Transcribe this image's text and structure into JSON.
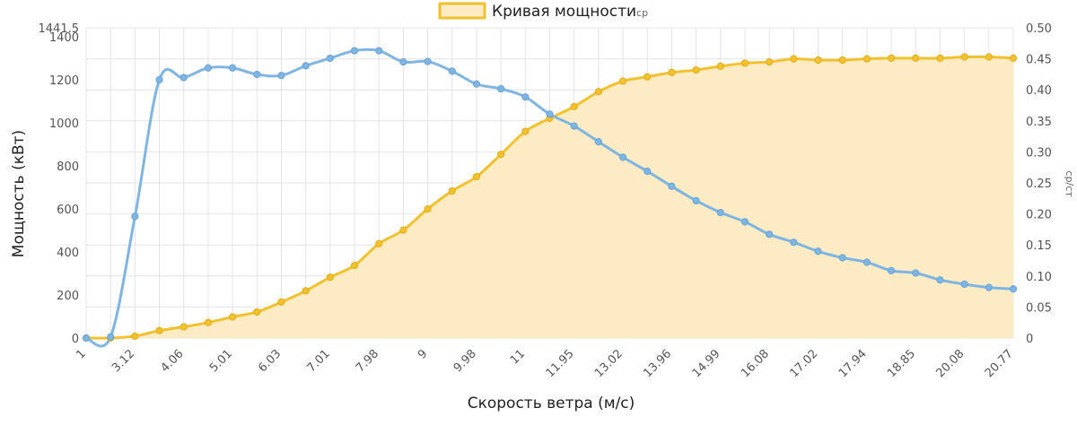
{
  "chart_data": {
    "type": "line",
    "legend": {
      "label": "Кривая мощности",
      "suffix": "ср",
      "placement": "top-center",
      "fill_color": "#fcebc3",
      "border_color": "#f2c12e"
    },
    "xlabel": "Скорость ветра (м/с)",
    "ylabel": "Мощность (кВт)",
    "y2label": "ср/ст",
    "x_tick_labels": [
      "1",
      "3.12",
      "4.06",
      "5.01",
      "6.03",
      "7.01",
      "7.98",
      "9",
      "9.98",
      "11",
      "11.95",
      "13.02",
      "13.96",
      "14.99",
      "16.08",
      "17.02",
      "17.94",
      "18.85",
      "20.08",
      "20.77"
    ],
    "x": [
      "1",
      "2",
      "3.12",
      "3.5",
      "4.06",
      "4.5",
      "5.01",
      "5.5",
      "6.03",
      "6.5",
      "7.01",
      "7.5",
      "7.98",
      "8.5",
      "9",
      "9.5",
      "9.98",
      "10.5",
      "11",
      "11.5",
      "11.95",
      "12.5",
      "13.02",
      "13.5",
      "13.96",
      "14.5",
      "14.99",
      "15.5",
      "16.08",
      "16.5",
      "17.02",
      "17.5",
      "17.94",
      "18.5",
      "18.85",
      "19.5",
      "20.08",
      "20.5",
      "20.77"
    ],
    "y_left": {
      "min": 0,
      "max": 1441.5,
      "ticks": [
        0,
        200,
        400,
        600,
        800,
        1000,
        1200,
        1400
      ],
      "top_label": "1441.5"
    },
    "y_right": {
      "min": 0,
      "max": 0.5,
      "ticks": [
        "0",
        "0.05",
        "0.10",
        "0.15",
        "0.20",
        "0.25",
        "0.30",
        "0.35",
        "0.40",
        "0.45",
        "0.50"
      ]
    },
    "grid": true,
    "series": [
      {
        "name": "Кривая мощности",
        "axis": "right",
        "type": "area",
        "color": "#f2c12e",
        "fill": "#fcebc3",
        "values": [
          0,
          0,
          0.003,
          0.012,
          0.018,
          0.025,
          0.034,
          0.042,
          0.058,
          0.076,
          0.098,
          0.117,
          0.152,
          0.174,
          0.208,
          0.237,
          0.26,
          0.296,
          0.333,
          0.354,
          0.373,
          0.397,
          0.414,
          0.421,
          0.428,
          0.432,
          0.438,
          0.443,
          0.445,
          0.45,
          0.448,
          0.448,
          0.45,
          0.451,
          0.451,
          0.451,
          0.453,
          0.453,
          0.451
        ]
      },
      {
        "name": "",
        "axis": "left",
        "type": "line",
        "color": "#7fb5e3",
        "values": [
          0,
          5,
          565,
          1200,
          1210,
          1255,
          1255,
          1225,
          1220,
          1265,
          1300,
          1335,
          1335,
          1283,
          1285,
          1240,
          1180,
          1158,
          1120,
          1040,
          985,
          912,
          840,
          775,
          705,
          638,
          583,
          540,
          482,
          445,
          403,
          373,
          352,
          313,
          302,
          270,
          250,
          235,
          228
        ]
      }
    ]
  }
}
